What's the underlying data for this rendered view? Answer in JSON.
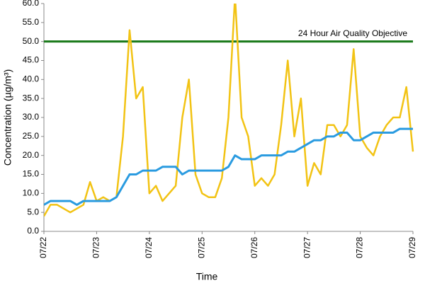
{
  "chart_data": {
    "type": "line",
    "x_label": "Time",
    "y_label": "Concentration (µg/m³)",
    "x": [
      0,
      0.125,
      0.25,
      0.375,
      0.5,
      0.625,
      0.75,
      0.875,
      1,
      1.125,
      1.25,
      1.375,
      1.5,
      1.625,
      1.75,
      1.875,
      2,
      2.125,
      2.25,
      2.375,
      2.5,
      2.625,
      2.75,
      2.875,
      3,
      3.125,
      3.25,
      3.375,
      3.5,
      3.625,
      3.75,
      3.875,
      4,
      4.125,
      4.25,
      4.375,
      4.5,
      4.625,
      4.75,
      4.875,
      5,
      5.125,
      5.25,
      5.375,
      5.5,
      5.625,
      5.75,
      5.875,
      6,
      6.125,
      6.25,
      6.375,
      6.5,
      6.625,
      6.75,
      6.875,
      7
    ],
    "series": [
      {
        "color": "#f2c314",
        "values": [
          4,
          7,
          7,
          6,
          5,
          6,
          7,
          13,
          8,
          9,
          8,
          9,
          25,
          53,
          35,
          38,
          10,
          12,
          8,
          10,
          12,
          30,
          40,
          15,
          10,
          9,
          9,
          14,
          30,
          62,
          30,
          25,
          12,
          14,
          12,
          15,
          28,
          45,
          25,
          35,
          12,
          18,
          15,
          28,
          28,
          25,
          28,
          48,
          25,
          22,
          20,
          25,
          28,
          30,
          30,
          38,
          21
        ]
      },
      {
        "color": "#2a9be0",
        "values": [
          7,
          8,
          8,
          8,
          8,
          7,
          8,
          8,
          8,
          8,
          8,
          9,
          12,
          15,
          15,
          16,
          16,
          16,
          17,
          17,
          17,
          15,
          16,
          16,
          16,
          16,
          16,
          16,
          17,
          20,
          19,
          19,
          19,
          20,
          20,
          20,
          20,
          21,
          21,
          22,
          23,
          24,
          24,
          25,
          25,
          26,
          26,
          24,
          24,
          25,
          26,
          26,
          26,
          26,
          27,
          27,
          27
        ]
      }
    ],
    "objective": {
      "value": 50,
      "label": "24 Hour Air Quality Objective",
      "color": "#1a7a1a"
    },
    "xlim": [
      0,
      7
    ],
    "xticks": [
      {
        "value": 0,
        "label": "07/22"
      },
      {
        "value": 1,
        "label": "07/23"
      },
      {
        "value": 2,
        "label": "07/24"
      },
      {
        "value": 3,
        "label": "07/25"
      },
      {
        "value": 4,
        "label": "07/26"
      },
      {
        "value": 5,
        "label": "07/27"
      },
      {
        "value": 6,
        "label": "07/28"
      },
      {
        "value": 7,
        "label": "07/29"
      }
    ],
    "ylim": [
      0,
      60
    ],
    "yticks": [
      {
        "value": 0,
        "label": "0.0"
      },
      {
        "value": 5,
        "label": "5.0"
      },
      {
        "value": 10,
        "label": "10.0"
      },
      {
        "value": 15,
        "label": "15.0"
      },
      {
        "value": 20,
        "label": "20.0"
      },
      {
        "value": 25,
        "label": "25.0"
      },
      {
        "value": 30,
        "label": "30.0"
      },
      {
        "value": 35,
        "label": "35.0"
      },
      {
        "value": 40,
        "label": "40.0"
      },
      {
        "value": 45,
        "label": "45.0"
      },
      {
        "value": 50,
        "label": "50.0"
      },
      {
        "value": 55,
        "label": "55.0"
      },
      {
        "value": 60,
        "label": "60.0"
      }
    ]
  }
}
